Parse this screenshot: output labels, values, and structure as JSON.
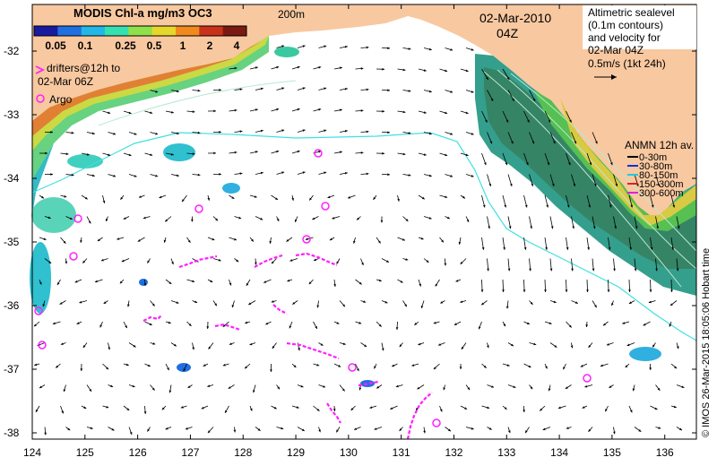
{
  "map": {
    "colorbar_title": "MODIS Chl-a mg/m3 OC3",
    "colorbar_ticks": [
      "0.05",
      "0.1",
      "0.25",
      "0.5",
      "1",
      "2",
      "4"
    ],
    "colorbar_colors": [
      "#1a1aa0",
      "#1f6fe0",
      "#22b7e6",
      "#35e0b0",
      "#8fe04a",
      "#e6d82a",
      "#f08a1e",
      "#c8321a",
      "#7a1a10"
    ],
    "contour_label": "200m",
    "date": "02-Mar-2010",
    "time": "04Z",
    "altimetry_note": [
      "Altimetric sealevel",
      "(0.1m contours)",
      "and velocity for",
      "02-Mar 04Z"
    ],
    "scale_label": "0.5m/s (1kt 24h)",
    "drifters_note": [
      "drifters@12h to",
      "02-Mar 06Z"
    ],
    "argo_label": "Argo",
    "anmn_title": "ANMN 12h av.",
    "anmn_legend": [
      {
        "label": "0-30m",
        "color": "#000000"
      },
      {
        "label": "30-80m",
        "color": "#1030e0"
      },
      {
        "label": "80-150m",
        "color": "#22c8e0"
      },
      {
        "label": "150-300m",
        "color": "#e02020"
      },
      {
        "label": "300-600m",
        "color": "#e020e0"
      }
    ],
    "credit": "© IMOS 26-Mar-2015 18:05:06 Hobart time",
    "x_ticks": [
      "124",
      "125",
      "126",
      "127",
      "128",
      "129",
      "130",
      "131",
      "132",
      "133",
      "134",
      "135",
      "136"
    ],
    "y_ticks": [
      "-32",
      "-33",
      "-34",
      "-35",
      "-36",
      "-37",
      "-38"
    ],
    "land_color": "#f8c8a0",
    "drifter_color": "#ff20ff",
    "contour_color": "#40e0e0"
  }
}
